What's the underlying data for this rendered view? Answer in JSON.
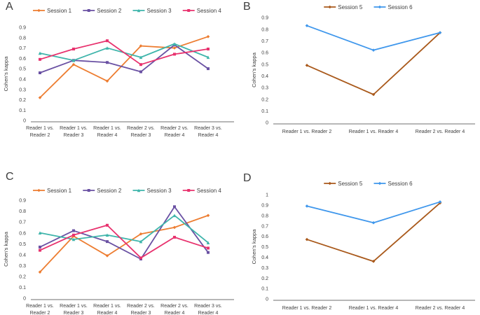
{
  "figure": {
    "ylabel": "Cohen's kappa",
    "panel_letters": [
      "A",
      "B",
      "C",
      "D"
    ]
  },
  "chart_data": [
    {
      "panel": "A",
      "type": "line",
      "ylabel": "Cohen's kappa",
      "ylim": [
        0,
        0.9
      ],
      "ytick_step": 0.1,
      "grid": false,
      "legend_position": "top-center",
      "categories": [
        "Reader 1 vs. Reader 2",
        "Reader 1 vs. Reader 3",
        "Reader 1 vs. Reader 4",
        "Reader 2 vs. Reader 3",
        "Reader 2 vs. Reader 4",
        "Reader 3 vs. Reader 4"
      ],
      "series": [
        {
          "name": "Session 1",
          "color": "#ED7D31",
          "values": [
            0.22,
            0.54,
            0.38,
            0.72,
            0.7,
            0.81
          ]
        },
        {
          "name": "Session 2",
          "color": "#6A51A3",
          "values": [
            0.46,
            0.58,
            0.56,
            0.47,
            0.73,
            0.5
          ]
        },
        {
          "name": "Session 3",
          "color": "#3FB5AB",
          "values": [
            0.65,
            0.58,
            0.7,
            0.61,
            0.74,
            0.61
          ]
        },
        {
          "name": "Session 4",
          "color": "#E8326E",
          "values": [
            0.59,
            0.69,
            0.77,
            0.54,
            0.64,
            0.69
          ]
        }
      ]
    },
    {
      "panel": "B",
      "type": "line",
      "ylabel": "Cohen's kappa",
      "ylim": [
        0,
        0.9
      ],
      "ytick_step": 0.1,
      "grid": false,
      "legend_position": "top-center",
      "categories": [
        "Reader 1 vs. Reader 2",
        "Reader 1 vs. Reader 4",
        "Reader 2 vs. Reader 4"
      ],
      "series": [
        {
          "name": "Session 5",
          "color": "#A9591B",
          "values": [
            0.49,
            0.24,
            0.77
          ]
        },
        {
          "name": "Session 6",
          "color": "#3F97EC",
          "values": [
            0.83,
            0.62,
            0.77
          ]
        }
      ]
    },
    {
      "panel": "C",
      "type": "line",
      "ylabel": "Cohen's kappa",
      "ylim": [
        0,
        0.9
      ],
      "ytick_step": 0.1,
      "grid": false,
      "legend_position": "top-center",
      "categories": [
        "Reader 1 vs. Reader 2",
        "Reader 1 vs. Reader 3",
        "Reader 1 vs. Reader 4",
        "Reader 2 vs. Reader 3",
        "Reader 2 vs. Reader 4",
        "Reader 3 vs. Reader 4"
      ],
      "series": [
        {
          "name": "Session 1",
          "color": "#ED7D31",
          "values": [
            0.24,
            0.57,
            0.39,
            0.59,
            0.65,
            0.76
          ]
        },
        {
          "name": "Session 2",
          "color": "#6A51A3",
          "values": [
            0.47,
            0.62,
            0.52,
            0.36,
            0.84,
            0.42
          ]
        },
        {
          "name": "Session 3",
          "color": "#3FB5AB",
          "values": [
            0.6,
            0.54,
            0.58,
            0.52,
            0.76,
            0.51
          ]
        },
        {
          "name": "Session 4",
          "color": "#E8326E",
          "values": [
            0.44,
            0.58,
            0.67,
            0.37,
            0.56,
            0.46
          ]
        }
      ]
    },
    {
      "panel": "D",
      "type": "line",
      "ylabel": "Cohen's kappa",
      "ylim": [
        0,
        1.0
      ],
      "ytick_step": 0.1,
      "grid": false,
      "legend_position": "top-center",
      "categories": [
        "Reader 1 vs. Reader 2",
        "Reader 1 vs. Reader 4",
        "Reader 2 vs. Reader 4"
      ],
      "series": [
        {
          "name": "Session 5",
          "color": "#A9591B",
          "values": [
            0.57,
            0.36,
            0.92
          ]
        },
        {
          "name": "Session 6",
          "color": "#3F97EC",
          "values": [
            0.89,
            0.73,
            0.93
          ]
        }
      ]
    }
  ]
}
